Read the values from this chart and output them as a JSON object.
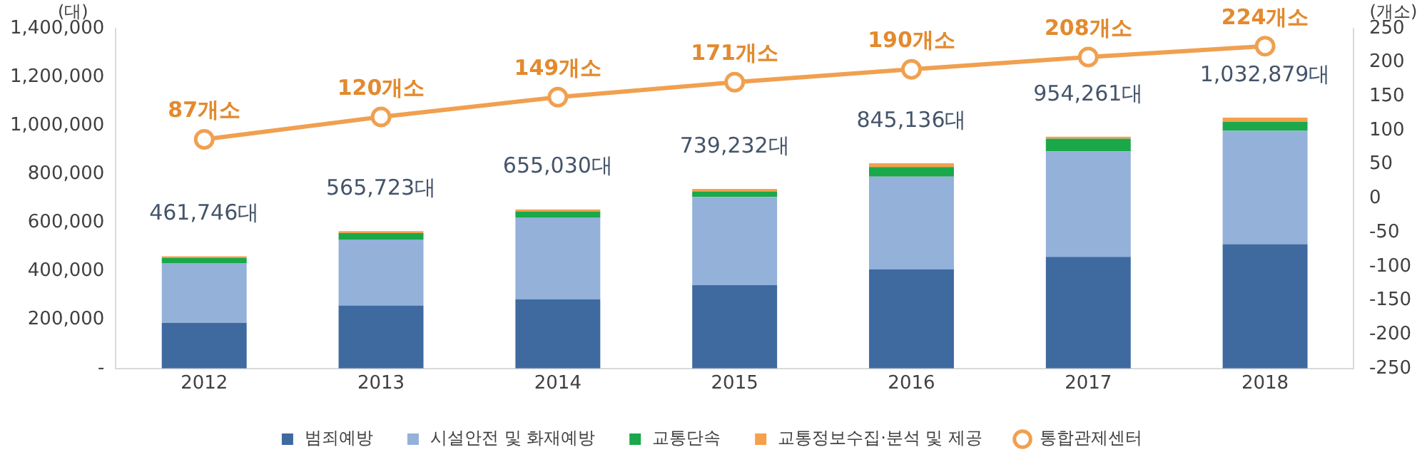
{
  "chart_data": {
    "type": "bar",
    "stacked": true,
    "ylabel": "(대)",
    "y2label": "(개소)",
    "categories": [
      "2012",
      "2013",
      "2014",
      "2015",
      "2016",
      "2017",
      "2018"
    ],
    "series": [
      {
        "name": "범죄예방",
        "color": "#3e6aa0",
        "values": [
          188000,
          259000,
          285000,
          343000,
          408000,
          460000,
          512000
        ]
      },
      {
        "name": "시설안전 및 화재예방",
        "color": "#93b1d9",
        "values": [
          246000,
          272000,
          337000,
          363000,
          382000,
          434000,
          467000
        ]
      },
      {
        "name": "교통단속",
        "color": "#1aa84a",
        "values": [
          22000,
          26000,
          25000,
          23000,
          40000,
          52000,
          36000
        ]
      },
      {
        "name": "교통정보수집·분석 및 제공",
        "color": "#f4a04c",
        "values": [
          5746,
          8723,
          8030,
          10232,
          15136,
          8261,
          17879
        ]
      },
      {
        "name": "통합관제센터",
        "type": "line",
        "axis": "y2",
        "color": "#f0a050",
        "marker": "circle",
        "values": [
          87,
          120,
          149,
          171,
          190,
          208,
          224
        ],
        "value_labels": [
          "87개소",
          "120개소",
          "149개소",
          "171개소",
          "190개소",
          "208개소",
          "224개소"
        ]
      }
    ],
    "totals": [
      "461,746대",
      "565,723대",
      "655,030대",
      "739,232대",
      "845,136대",
      "954,261대",
      "1,032,879대"
    ],
    "ylim": [
      0,
      1400000
    ],
    "yticks": [
      {
        "value": 0,
        "label": "-"
      },
      {
        "value": 200000,
        "label": "200,000"
      },
      {
        "value": 400000,
        "label": "400,000"
      },
      {
        "value": 600000,
        "label": "600,000"
      },
      {
        "value": 800000,
        "label": "800,000"
      },
      {
        "value": 1000000,
        "label": "1,000,000"
      },
      {
        "value": 1200000,
        "label": "1,200,000"
      },
      {
        "value": 1400000,
        "label": "1,400,000"
      }
    ],
    "y2lim": [
      -250,
      250
    ],
    "y2ticks": [
      -250,
      -200,
      -150,
      -100,
      -50,
      0,
      50,
      100,
      150,
      200,
      250
    ],
    "grid": false,
    "legend": "bottom"
  }
}
